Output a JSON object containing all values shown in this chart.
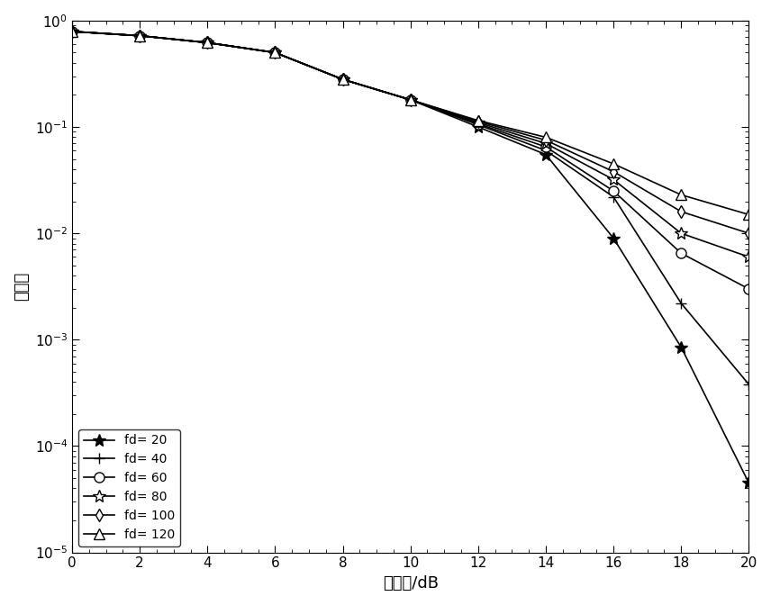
{
  "xlabel": "信噪比/dB",
  "ylabel": "误码率",
  "xlim": [
    0,
    20
  ],
  "ylim": [
    1e-05,
    1
  ],
  "xticks": [
    0,
    2,
    4,
    6,
    8,
    10,
    12,
    14,
    16,
    18,
    20
  ],
  "series": [
    {
      "label": "fd= 20",
      "marker": "*",
      "mfc": "black",
      "mec": "black",
      "ms": 10,
      "x": [
        0,
        2,
        4,
        6,
        8,
        10,
        12,
        14,
        16,
        18,
        20
      ],
      "y": [
        0.79,
        0.72,
        0.62,
        0.5,
        0.28,
        0.18,
        0.1,
        0.055,
        0.009,
        0.00085,
        4.5e-05
      ]
    },
    {
      "label": "fd= 40",
      "marker": "+",
      "mfc": "black",
      "mec": "black",
      "ms": 9,
      "x": [
        0,
        2,
        4,
        6,
        8,
        10,
        12,
        14,
        16,
        18,
        20
      ],
      "y": [
        0.79,
        0.72,
        0.62,
        0.5,
        0.28,
        0.18,
        0.105,
        0.06,
        0.022,
        0.0022,
        0.00038
      ]
    },
    {
      "label": "fd= 60",
      "marker": "o",
      "mfc": "white",
      "mec": "black",
      "ms": 8,
      "x": [
        0,
        2,
        4,
        6,
        8,
        10,
        12,
        14,
        16,
        18,
        20
      ],
      "y": [
        0.79,
        0.72,
        0.62,
        0.5,
        0.28,
        0.18,
        0.107,
        0.065,
        0.025,
        0.0065,
        0.003
      ]
    },
    {
      "label": "fd= 80",
      "marker": "*",
      "mfc": "white",
      "mec": "black",
      "ms": 10,
      "x": [
        0,
        2,
        4,
        6,
        8,
        10,
        12,
        14,
        16,
        18,
        20
      ],
      "y": [
        0.79,
        0.72,
        0.62,
        0.5,
        0.28,
        0.18,
        0.11,
        0.07,
        0.032,
        0.01,
        0.006
      ]
    },
    {
      "label": "fd= 100",
      "marker": "d",
      "mfc": "white",
      "mec": "black",
      "ms": 7,
      "x": [
        0,
        2,
        4,
        6,
        8,
        10,
        12,
        14,
        16,
        18,
        20
      ],
      "y": [
        0.79,
        0.72,
        0.62,
        0.5,
        0.28,
        0.18,
        0.113,
        0.075,
        0.038,
        0.016,
        0.01
      ]
    },
    {
      "label": "fd= 120",
      "marker": "^",
      "mfc": "white",
      "mec": "black",
      "ms": 8,
      "x": [
        0,
        2,
        4,
        6,
        8,
        10,
        12,
        14,
        16,
        18,
        20
      ],
      "y": [
        0.79,
        0.72,
        0.62,
        0.5,
        0.28,
        0.18,
        0.115,
        0.08,
        0.045,
        0.023,
        0.015
      ]
    }
  ],
  "line_color": "black",
  "background_color": "white",
  "legend_loc": "lower left",
  "label_fontsize": 13,
  "tick_fontsize": 11,
  "legend_fontsize": 10
}
